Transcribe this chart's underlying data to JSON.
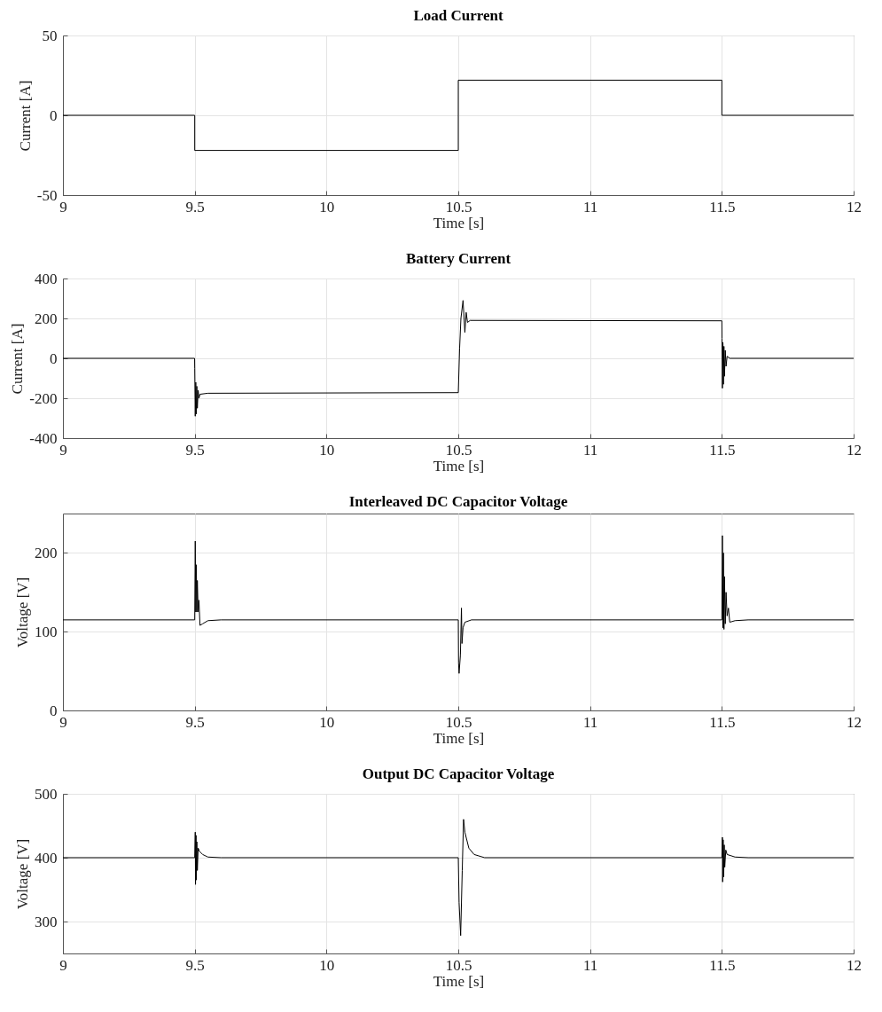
{
  "chart_data": [
    {
      "type": "step",
      "title": "Load Current",
      "xlabel": "Time [s]",
      "ylabel": "Current [A]",
      "xlim": [
        9,
        12
      ],
      "xticks": [
        9,
        9.5,
        10,
        10.5,
        11,
        11.5,
        12
      ],
      "ylim": [
        -50,
        50
      ],
      "yticks": [
        -50,
        0,
        50
      ],
      "grid": true,
      "legend": false,
      "series": [
        {
          "color": "#000000",
          "x": [
            9,
            9.5,
            10.5,
            11.5,
            12
          ],
          "values": [
            0,
            -22,
            22,
            0,
            0
          ]
        }
      ]
    },
    {
      "type": "line",
      "title": "Battery Current",
      "xlabel": "Time [s]",
      "ylabel": "Current [A]",
      "xlim": [
        9,
        12
      ],
      "xticks": [
        9,
        9.5,
        10,
        10.5,
        11,
        11.5,
        12
      ],
      "ylim": [
        -400,
        400
      ],
      "yticks": [
        -400,
        -200,
        0,
        200,
        400
      ],
      "grid": true,
      "legend": false,
      "series": [
        {
          "color": "#000000",
          "x": [
            9,
            9.4995,
            9.5,
            9.502,
            9.504,
            9.506,
            9.508,
            9.51,
            9.513,
            9.516,
            9.52,
            9.55,
            10.5,
            10.505,
            10.51,
            10.518,
            10.522,
            10.525,
            10.53,
            10.535,
            10.545,
            11.5,
            11.5005,
            11.502,
            11.504,
            11.506,
            11.508,
            11.51,
            11.513,
            11.516,
            11.52,
            11.53,
            12
          ],
          "values": [
            0,
            0,
            -50,
            -290,
            -120,
            -280,
            -140,
            -250,
            -160,
            -200,
            -180,
            -175,
            -172,
            50,
            200,
            290,
            200,
            130,
            230,
            180,
            190,
            188,
            100,
            -150,
            80,
            -130,
            60,
            -90,
            40,
            -40,
            10,
            0,
            0
          ]
        }
      ]
    },
    {
      "type": "line",
      "title": "Interleaved DC Capacitor Voltage",
      "xlabel": "Time [s]",
      "ylabel": "Voltage [V]",
      "xlim": [
        9,
        12
      ],
      "xticks": [
        9,
        9.5,
        10,
        10.5,
        11,
        11.5,
        12
      ],
      "ylim": [
        0,
        250
      ],
      "yticks": [
        0,
        100,
        200
      ],
      "grid": true,
      "legend": false,
      "series": [
        {
          "color": "#000000",
          "x": [
            9,
            9.5,
            9.502,
            9.504,
            9.506,
            9.508,
            9.51,
            9.513,
            9.516,
            9.52,
            9.53,
            9.55,
            9.6,
            10.5,
            10.501,
            10.503,
            10.508,
            10.512,
            10.514,
            10.518,
            10.525,
            10.55,
            11.5,
            11.502,
            11.504,
            11.506,
            11.508,
            11.51,
            11.513,
            11.516,
            11.52,
            11.525,
            11.53,
            11.55,
            11.6,
            12
          ],
          "values": [
            115,
            115,
            215,
            125,
            185,
            125,
            165,
            125,
            140,
            108,
            110,
            114,
            115,
            115,
            60,
            47,
            70,
            130,
            85,
            105,
            112,
            115,
            115,
            222,
            105,
            200,
            103,
            170,
            110,
            150,
            120,
            130,
            112,
            114,
            115,
            115
          ]
        }
      ]
    },
    {
      "type": "line",
      "title": "Output DC Capacitor Voltage",
      "xlabel": "Time [s]",
      "ylabel": "Voltage [V]",
      "xlim": [
        9,
        12
      ],
      "xticks": [
        9,
        9.5,
        10,
        10.5,
        11,
        11.5,
        12
      ],
      "ylim": [
        250,
        500
      ],
      "yticks": [
        300,
        400,
        500
      ],
      "grid": true,
      "legend": false,
      "series": [
        {
          "color": "#000000",
          "x": [
            9,
            9.5,
            9.502,
            9.503,
            9.505,
            9.506,
            9.508,
            9.51,
            9.513,
            9.518,
            9.53,
            9.55,
            9.6,
            10.5,
            10.503,
            10.509,
            10.515,
            10.52,
            10.525,
            10.54,
            10.56,
            10.6,
            11.5,
            11.502,
            11.503,
            11.505,
            11.507,
            11.509,
            11.511,
            11.515,
            11.52,
            11.55,
            11.6,
            12
          ],
          "values": [
            400,
            400,
            440,
            358,
            435,
            365,
            425,
            380,
            415,
            410,
            405,
            401,
            400,
            400,
            330,
            278,
            380,
            460,
            440,
            415,
            405,
            400,
            400,
            432,
            362,
            428,
            370,
            420,
            385,
            412,
            405,
            401,
            400,
            400
          ]
        }
      ]
    }
  ]
}
